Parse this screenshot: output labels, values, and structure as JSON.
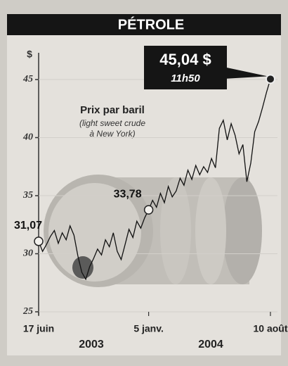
{
  "chart_data": {
    "type": "line",
    "title": "PÉTROLE",
    "subtitle": "Prix par baril",
    "note": [
      "(light sweet crude",
      "à New York)"
    ],
    "y_unit": "$",
    "categories": [
      "17 juin",
      null,
      null,
      null,
      null,
      null,
      null,
      null,
      null,
      null,
      null,
      null,
      null,
      null,
      null,
      null,
      null,
      null,
      null,
      null,
      null,
      null,
      null,
      null,
      null,
      null,
      null,
      null,
      "5 janv.",
      null,
      null,
      null,
      null,
      null,
      null,
      null,
      null,
      null,
      null,
      null,
      null,
      null,
      null,
      null,
      null,
      null,
      null,
      null,
      null,
      null,
      null,
      null,
      null,
      null,
      null,
      null,
      null,
      null,
      null,
      "10 août"
    ],
    "values": [
      31.07,
      30.2,
      30.8,
      31.5,
      32.0,
      30.9,
      31.8,
      31.2,
      32.4,
      31.6,
      29.8,
      28.4,
      27.8,
      28.9,
      29.6,
      30.4,
      29.9,
      31.2,
      30.6,
      31.8,
      30.2,
      29.5,
      30.8,
      32.1,
      31.4,
      32.8,
      32.2,
      33.1,
      33.78,
      34.6,
      34.0,
      35.2,
      34.4,
      35.8,
      34.9,
      35.4,
      36.5,
      35.9,
      37.2,
      36.4,
      37.6,
      36.8,
      37.5,
      37.0,
      38.2,
      37.4,
      40.8,
      41.5,
      39.8,
      41.2,
      40.2,
      38.6,
      39.4,
      36.2,
      37.8,
      40.5,
      41.4,
      42.6,
      43.9,
      45.04
    ],
    "value_labels": [
      "31,07",
      null,
      null,
      null,
      null,
      null,
      null,
      null,
      null,
      null,
      null,
      null,
      null,
      null,
      null,
      null,
      null,
      null,
      null,
      null,
      null,
      null,
      null,
      null,
      null,
      null,
      null,
      null,
      "33,78",
      null,
      null,
      null,
      null,
      null,
      null,
      null,
      null,
      null,
      null,
      null,
      null,
      null,
      null,
      null,
      null,
      null,
      null,
      null,
      null,
      null,
      null,
      null,
      null,
      null,
      null,
      null,
      null,
      null,
      null,
      "45,04 $"
    ],
    "time_label": "11h50",
    "year_labels": [
      "2003",
      "2004"
    ],
    "color": "#111111",
    "ylim": [
      25,
      46
    ],
    "yticks": [
      25,
      30,
      35,
      40,
      45
    ]
  }
}
